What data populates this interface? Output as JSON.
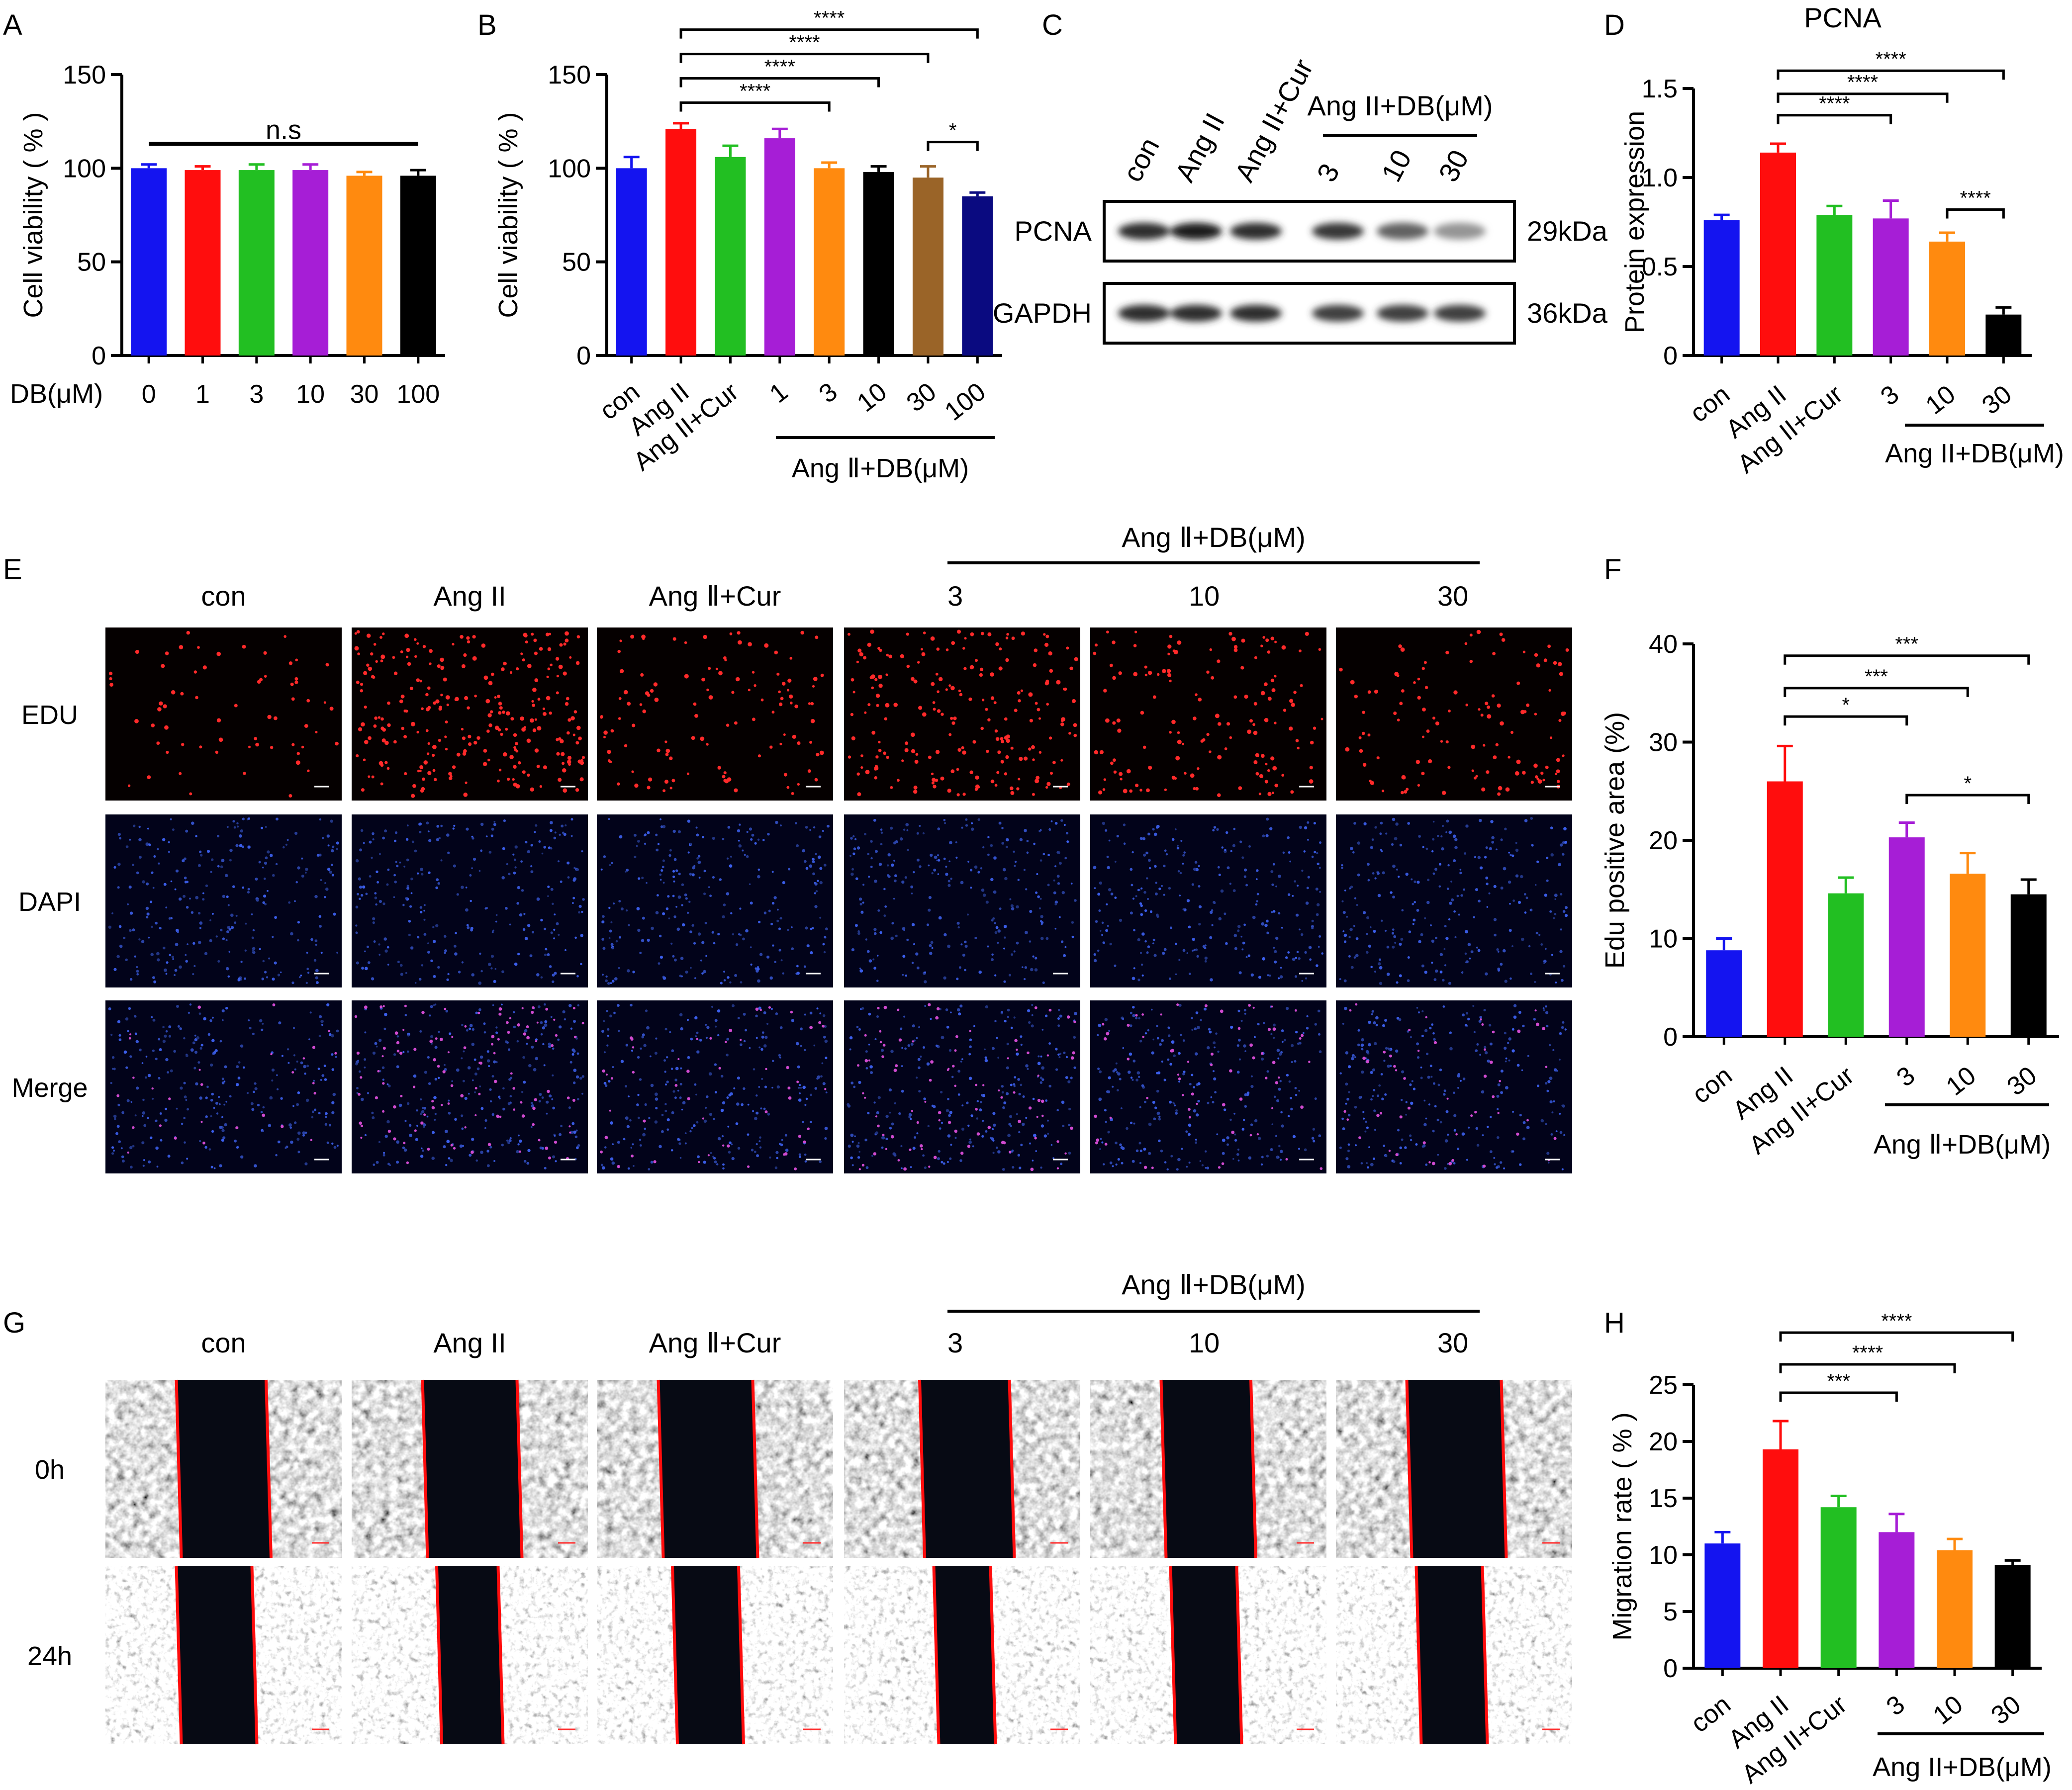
{
  "colors": {
    "blue": "#1414f0",
    "red": "#ff0d0d",
    "green": "#22bf22",
    "purple": "#a61ed6",
    "orange": "#ff8a0f",
    "black": "#000000",
    "brown": "#9a6428",
    "navy": "#0a0a80"
  },
  "panels": {
    "A": "A",
    "B": "B",
    "C": "C",
    "D": "D",
    "E": "E",
    "F": "F",
    "G": "G",
    "H": "H"
  },
  "chart_data": [
    {
      "id": "A",
      "type": "bar",
      "xlabel": "DB(μM)",
      "ylabel": "Cell viability ( % )",
      "categories": [
        "0",
        "1",
        "3",
        "10",
        "30",
        "100"
      ],
      "values": [
        100,
        99,
        99,
        99,
        96,
        96
      ],
      "errors": [
        2,
        2,
        3,
        3,
        2,
        3
      ],
      "colors": [
        "blue",
        "red",
        "green",
        "purple",
        "orange",
        "black"
      ],
      "ylim": [
        0,
        150
      ],
      "yticks": [
        0,
        50,
        100,
        150
      ],
      "annotations": [
        {
          "from": 0,
          "to": 5,
          "y": 113,
          "label": "n.s"
        }
      ]
    },
    {
      "id": "B",
      "type": "bar",
      "xlabel": "",
      "ylabel": "Cell viability ( % )",
      "categories": [
        "con",
        "Ang II",
        "Ang II+Cur",
        "1",
        "3",
        "10",
        "30",
        "100"
      ],
      "group_label": "Ang Ⅱ+DB(μM)",
      "values": [
        100,
        121,
        106,
        116,
        100,
        98,
        95,
        85
      ],
      "errors": [
        6,
        3,
        6,
        5,
        3,
        3,
        6,
        2
      ],
      "colors": [
        "blue",
        "red",
        "green",
        "purple",
        "orange",
        "black",
        "brown",
        "navy"
      ],
      "ylim": [
        0,
        150
      ],
      "yticks": [
        0,
        50,
        100,
        150
      ],
      "annotations": [
        {
          "from": 1,
          "to": 4,
          "y": 135,
          "label": "****"
        },
        {
          "from": 1,
          "to": 5,
          "y": 148,
          "label": "****"
        },
        {
          "from": 1,
          "to": 6,
          "y": 161,
          "label": "****"
        },
        {
          "from": 1,
          "to": 7,
          "y": 174,
          "label": "****"
        },
        {
          "from": 6,
          "to": 7,
          "y": 114,
          "label": "*"
        }
      ]
    },
    {
      "id": "D",
      "type": "bar",
      "title": "PCNA",
      "xlabel": "",
      "ylabel": "Protein expression",
      "categories": [
        "con",
        "Ang II",
        "Ang II+Cur",
        "3",
        "10",
        "30"
      ],
      "group_label": "Ang II+DB(μM)",
      "values": [
        0.76,
        1.14,
        0.79,
        0.77,
        0.64,
        0.23
      ],
      "errors": [
        0.03,
        0.05,
        0.05,
        0.1,
        0.05,
        0.04
      ],
      "colors": [
        "blue",
        "red",
        "green",
        "purple",
        "orange",
        "black"
      ],
      "ylim": [
        0,
        1.5
      ],
      "yticks": [
        0,
        0.5,
        1.0,
        1.5
      ],
      "ytick_labels": [
        "0",
        "0.5",
        "1.0",
        "1.5"
      ],
      "annotations": [
        {
          "from": 1,
          "to": 3,
          "y": 1.35,
          "label": "****"
        },
        {
          "from": 1,
          "to": 4,
          "y": 1.47,
          "label": "****"
        },
        {
          "from": 1,
          "to": 5,
          "y": 1.6,
          "label": "****"
        },
        {
          "from": 4,
          "to": 5,
          "y": 0.82,
          "label": "****"
        }
      ]
    },
    {
      "id": "F",
      "type": "bar",
      "xlabel": "",
      "ylabel": "Edu positive area (%)",
      "categories": [
        "con",
        "Ang II",
        "Ang II+Cur",
        "3",
        "10",
        "30"
      ],
      "group_label": "Ang Ⅱ+DB(μM)",
      "values": [
        8.8,
        26.0,
        14.6,
        20.3,
        16.6,
        14.5
      ],
      "errors": [
        1.2,
        3.6,
        1.6,
        1.5,
        2.1,
        1.5
      ],
      "colors": [
        "blue",
        "red",
        "green",
        "purple",
        "orange",
        "black"
      ],
      "ylim": [
        0,
        40
      ],
      "yticks": [
        0,
        10,
        20,
        30,
        40
      ],
      "annotations": [
        {
          "from": 1,
          "to": 3,
          "y": 32.6,
          "label": "*"
        },
        {
          "from": 1,
          "to": 4,
          "y": 35.5,
          "label": "***"
        },
        {
          "from": 1,
          "to": 5,
          "y": 38.8,
          "label": "***"
        },
        {
          "from": 3,
          "to": 5,
          "y": 24.6,
          "label": "*"
        }
      ]
    },
    {
      "id": "H",
      "type": "bar",
      "xlabel": "",
      "ylabel": "Migration rate ( % )",
      "categories": [
        "con",
        "Ang II",
        "Ang II+Cur",
        "3",
        "10",
        "30"
      ],
      "group_label": "Ang II+DB(μM)",
      "values": [
        11.0,
        19.3,
        14.2,
        12.0,
        10.4,
        9.1
      ],
      "errors": [
        1.0,
        2.5,
        1.0,
        1.6,
        1.0,
        0.4
      ],
      "colors": [
        "blue",
        "red",
        "green",
        "purple",
        "orange",
        "black"
      ],
      "ylim": [
        0,
        25
      ],
      "yticks": [
        0,
        5,
        10,
        15,
        20,
        25
      ],
      "annotations": [
        {
          "from": 1,
          "to": 3,
          "y": 24.3,
          "label": "***"
        },
        {
          "from": 1,
          "to": 4,
          "y": 26.8,
          "label": "****"
        },
        {
          "from": 1,
          "to": 5,
          "y": 29.6,
          "label": "****"
        }
      ]
    }
  ],
  "blot": {
    "lanes": [
      "con",
      "Ang II",
      "Ang II+Cur",
      "3",
      "10",
      "30"
    ],
    "group_label": "Ang II+DB(μM)",
    "rows": [
      {
        "name": "PCNA",
        "size": "29kDa",
        "intensity": [
          0.9,
          1.0,
          0.9,
          0.85,
          0.6,
          0.3
        ]
      },
      {
        "name": "GAPDH",
        "size": "36kDa",
        "intensity": [
          0.9,
          0.9,
          0.9,
          0.8,
          0.8,
          0.8
        ]
      }
    ]
  },
  "edu": {
    "columns": [
      "con",
      "Ang II",
      "Ang Ⅱ+Cur",
      "3",
      "10",
      "30"
    ],
    "group_label": "Ang Ⅱ+DB(μM)",
    "rows": [
      "EDU",
      "DAPI",
      "Merge"
    ],
    "red_density": [
      0.25,
      1.0,
      0.45,
      0.8,
      0.55,
      0.45
    ]
  },
  "migration": {
    "columns": [
      "con",
      "Ang II",
      "Ang Ⅱ+Cur",
      "3",
      "10",
      "30"
    ],
    "group_label": "Ang Ⅱ+DB(μM)",
    "rows": [
      "0h",
      "24h"
    ]
  }
}
